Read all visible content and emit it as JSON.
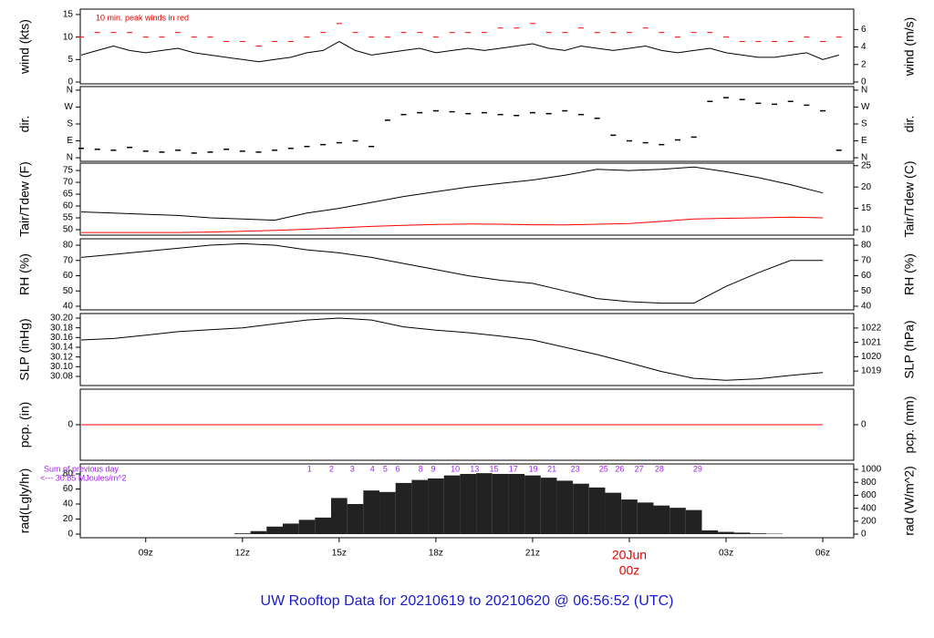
{
  "title": "UW Rooftop Data for 20210619  to  20210620 @ 06:56:52  (UTC)",
  "chart_data": [
    {
      "type": "line",
      "ylabel": "wind (kts)",
      "y2label": "wind (m/s)",
      "annotation": "10 min. peak winds in red",
      "xlim": [
        6.97,
        30.96
      ],
      "x": [
        7,
        7.5,
        8,
        8.5,
        9,
        9.5,
        10,
        10.5,
        11,
        11.5,
        12,
        12.5,
        13,
        13.5,
        14,
        14.5,
        15,
        15.5,
        16,
        16.5,
        17,
        17.5,
        18,
        18.5,
        19,
        19.5,
        20,
        20.5,
        21,
        21.5,
        22,
        22.5,
        23,
        23.5,
        24,
        24.5,
        25,
        25.5,
        26,
        26.5,
        27,
        27.5,
        28,
        28.5,
        29,
        29.5,
        30,
        30.5
      ],
      "series": [
        {
          "color": "#000000",
          "mode": "line",
          "values": [
            6,
            7,
            8,
            7,
            6.5,
            7,
            7.5,
            6.5,
            6,
            5.5,
            5,
            4.5,
            5,
            5.5,
            6.5,
            7,
            9,
            7,
            6,
            6.5,
            7,
            7.5,
            6.5,
            7,
            7.5,
            7,
            7.5,
            8,
            8.5,
            7.5,
            7,
            8,
            7.5,
            7,
            7.5,
            8,
            7,
            6.5,
            7,
            7.5,
            6.5,
            6,
            5.5,
            5.5,
            6,
            6.5,
            5,
            6
          ]
        },
        {
          "color": "#ff0000",
          "mode": "markers",
          "values": [
            10,
            11,
            11,
            11,
            10,
            10,
            11,
            10,
            10,
            9,
            9,
            8,
            9,
            9,
            10,
            11,
            13,
            11,
            10,
            10,
            11,
            11,
            10,
            11,
            11,
            11,
            12,
            12,
            13,
            11,
            11,
            12,
            11,
            11,
            11,
            12,
            11,
            10,
            11,
            11,
            10,
            9,
            9,
            9,
            9,
            10,
            9,
            10
          ]
        }
      ],
      "ylim": [
        -0.4,
        16.2
      ],
      "yticks": [
        0,
        5,
        10,
        15
      ],
      "y2lim": [
        -0.21,
        8.33
      ],
      "y2ticks": [
        0,
        2,
        4,
        6
      ]
    },
    {
      "type": "scatter",
      "ylabel": "dir.",
      "y2label": "dir.",
      "xlim": [
        6.97,
        30.96
      ],
      "x": [
        7,
        7.5,
        8,
        8.5,
        9,
        9.5,
        10,
        10.5,
        11,
        11.5,
        12,
        12.5,
        13,
        13.5,
        14,
        14.5,
        15,
        15.5,
        16,
        16.5,
        17,
        17.5,
        18,
        18.5,
        19,
        19.5,
        20,
        20.5,
        21,
        21.5,
        22,
        22.5,
        23,
        23.5,
        24,
        24.5,
        25,
        25.5,
        26,
        26.5,
        27,
        27.5,
        28,
        28.5,
        29,
        29.5,
        30,
        30.5
      ],
      "series": [
        {
          "color": "#000000",
          "values": [
            50,
            45,
            40,
            55,
            35,
            30,
            40,
            25,
            30,
            45,
            35,
            30,
            40,
            50,
            60,
            70,
            80,
            90,
            60,
            200,
            230,
            240,
            250,
            245,
            235,
            240,
            230,
            225,
            240,
            235,
            250,
            230,
            210,
            120,
            90,
            80,
            70,
            95,
            110,
            300,
            320,
            310,
            290,
            285,
            300,
            280,
            250,
            40
          ]
        }
      ],
      "ylim": [
        -19,
        379
      ],
      "yticks": [
        {
          "value": 0,
          "label": "N"
        },
        {
          "value": 90,
          "label": "E"
        },
        {
          "value": 180,
          "label": "S"
        },
        {
          "value": 270,
          "label": "W"
        },
        {
          "value": 360,
          "label": "N"
        }
      ],
      "y2lim": [
        -19,
        379
      ],
      "y2ticks": [
        {
          "value": 0,
          "label": "N"
        },
        {
          "value": 90,
          "label": "E"
        },
        {
          "value": 180,
          "label": "S"
        },
        {
          "value": 270,
          "label": "W"
        },
        {
          "value": 360,
          "label": "N"
        }
      ]
    },
    {
      "type": "line",
      "ylabel": "Tair/Tdew (F)",
      "y2label": "Tair/Tdew (C)",
      "xlim": [
        6.97,
        30.96
      ],
      "x": [
        7,
        8,
        9,
        10,
        11,
        12,
        13,
        14,
        15,
        16,
        17,
        18,
        19,
        20,
        21,
        22,
        23,
        24,
        25,
        26,
        27,
        28,
        29,
        30
      ],
      "series": [
        {
          "color": "#000000",
          "mode": "line",
          "values": [
            57.5,
            57,
            56.5,
            56,
            55,
            54.5,
            54,
            57,
            59,
            61.5,
            64,
            66,
            68,
            69.5,
            71,
            73,
            75.5,
            75,
            75.5,
            76.5,
            74.5,
            72,
            69,
            65.5
          ]
        },
        {
          "color": "#ff0000",
          "mode": "line",
          "values": [
            48.8,
            48.8,
            48.8,
            48.8,
            49,
            49.3,
            49.7,
            50.2,
            50.8,
            51.4,
            51.8,
            52.2,
            52.4,
            52.3,
            52.1,
            52,
            52.3,
            52.6,
            53.5,
            54.5,
            54.8,
            55,
            55.3,
            55
          ]
        }
      ],
      "ylim": [
        47.7,
        78.1
      ],
      "yticks": [
        50,
        55,
        60,
        65,
        70,
        75
      ],
      "y2lim": [
        8.72,
        25.6
      ],
      "y2ticks": [
        10,
        15,
        20,
        25
      ]
    },
    {
      "type": "line",
      "ylabel": "RH (%)",
      "y2label": "RH (%)",
      "xlim": [
        6.97,
        30.96
      ],
      "x": [
        7,
        8,
        9,
        10,
        11,
        12,
        13,
        14,
        15,
        16,
        17,
        18,
        19,
        20,
        21,
        22,
        23,
        24,
        25,
        26,
        27,
        28,
        29,
        30
      ],
      "series": [
        {
          "color": "#000000",
          "mode": "line",
          "values": [
            72,
            74,
            76,
            78,
            80,
            81,
            80,
            77,
            75,
            72,
            68,
            64,
            60,
            57,
            55,
            50,
            45,
            43,
            42,
            42,
            53,
            62,
            70,
            70
          ]
        }
      ],
      "ylim": [
        37.6,
        84.2
      ],
      "yticks": [
        40,
        50,
        60,
        70,
        80
      ],
      "y2lim": [
        37.6,
        84.2
      ],
      "y2ticks": [
        40,
        50,
        60,
        70,
        80
      ]
    },
    {
      "type": "line",
      "ylabel": "SLP (inHg)",
      "y2label": "SLP (hPa)",
      "xlim": [
        6.97,
        30.96
      ],
      "x": [
        7,
        8,
        9,
        10,
        11,
        12,
        13,
        14,
        15,
        16,
        17,
        18,
        19,
        20,
        21,
        22,
        23,
        24,
        25,
        26,
        27,
        28,
        29,
        30
      ],
      "series": [
        {
          "color": "#000000",
          "mode": "line",
          "values": [
            30.155,
            30.158,
            30.165,
            30.172,
            30.176,
            30.18,
            30.188,
            30.196,
            30.2,
            30.196,
            30.182,
            30.175,
            30.17,
            30.163,
            30.155,
            30.14,
            30.125,
            30.108,
            30.09,
            30.076,
            30.072,
            30.075,
            30.082,
            30.088
          ]
        }
      ],
      "ylim": [
        30.0612,
        30.2094
      ],
      "yticks": [
        30.08,
        {
          "value": 30.1,
          "label": "30.10"
        },
        30.12,
        30.14,
        30.16,
        30.18,
        {
          "value": 30.2,
          "label": "30.20"
        }
      ],
      "y2lim": [
        1017.99,
        1023.01
      ],
      "y2ticks": [
        1019,
        1020,
        1021,
        1022
      ]
    },
    {
      "type": "line",
      "ylabel": "pcp. (in)",
      "y2label": "pcp. (mm)",
      "xlim": [
        6.97,
        30.96
      ],
      "x": [
        7,
        8,
        9,
        10,
        11,
        12,
        13,
        14,
        15,
        16,
        17,
        18,
        19,
        20,
        21,
        22,
        23,
        24,
        25,
        26,
        27,
        28,
        29,
        30
      ],
      "series": [
        {
          "color": "#ff0000",
          "mode": "line",
          "values": [
            0,
            0,
            0,
            0,
            0,
            0,
            0,
            0,
            0,
            0,
            0,
            0,
            0,
            0,
            0,
            0,
            0,
            0,
            0,
            0,
            0,
            0,
            0,
            0
          ]
        }
      ],
      "ylim": [
        -1,
        1
      ],
      "yticks": [
        0
      ],
      "y2lim": [
        -25.4,
        25.4
      ],
      "y2ticks": [
        0
      ]
    },
    {
      "type": "bar",
      "ylabel": "rad(Lgly/hr)",
      "y2label": "rad (W/m^2)",
      "annotations": [
        "Sum of previous day",
        "<--- 30.85 MJoules/m^2"
      ],
      "marker_color": "#a020f0",
      "hour_markers": [
        {
          "label": "1",
          "x": 14.08
        },
        {
          "label": "2",
          "x": 14.76
        },
        {
          "label": "3",
          "x": 15.41
        },
        {
          "label": "4",
          "x": 16.03
        },
        {
          "label": "5",
          "x": 16.43
        },
        {
          "label": "6",
          "x": 16.82
        },
        {
          "label": "8",
          "x": 17.53
        },
        {
          "label": "9",
          "x": 17.92
        },
        {
          "label": "10",
          "x": 18.6
        },
        {
          "label": "13",
          "x": 19.2
        },
        {
          "label": "15",
          "x": 19.8
        },
        {
          "label": "17",
          "x": 20.4
        },
        {
          "label": "19",
          "x": 21.02
        },
        {
          "label": "21",
          "x": 21.6
        },
        {
          "label": "23",
          "x": 22.32
        },
        {
          "label": "25",
          "x": 23.2
        },
        {
          "label": "26",
          "x": 23.7
        },
        {
          "label": "27",
          "x": 24.3
        },
        {
          "label": "28",
          "x": 24.93
        },
        {
          "label": "29",
          "x": 26.12
        }
      ],
      "xlim": [
        6.97,
        30.96
      ],
      "x": [
        7,
        7.5,
        8,
        8.5,
        9,
        9.5,
        10,
        10.5,
        11,
        11.5,
        12,
        12.5,
        13,
        13.5,
        14,
        14.5,
        15,
        15.5,
        16,
        16.5,
        17,
        17.5,
        18,
        18.5,
        19,
        19.5,
        20,
        20.5,
        21,
        21.5,
        22,
        22.5,
        23,
        23.5,
        24,
        24.5,
        25,
        25.5,
        26,
        26.5,
        27,
        27.5,
        28,
        28.5,
        29,
        29.5,
        30,
        30.5
      ],
      "series": [
        {
          "color": "#222222",
          "values": [
            0,
            0,
            0,
            0,
            0,
            0,
            0,
            0,
            0,
            0,
            1,
            4,
            10,
            14,
            19,
            22,
            48,
            40,
            58,
            56,
            68,
            72,
            74,
            78,
            80,
            81,
            80,
            80,
            78,
            75,
            71,
            67,
            62,
            55,
            46,
            42,
            38,
            35,
            32,
            5,
            3,
            2,
            1,
            0.5,
            0,
            0,
            0,
            0
          ]
        }
      ],
      "ylim": [
        -4.8,
        93.3
      ],
      "yticks": [
        0,
        20,
        40,
        60,
        80
      ],
      "y2lim": [
        -55.8,
        1085
      ],
      "y2ticks": [
        0,
        200,
        400,
        600,
        800,
        1000
      ],
      "xticks": [
        {
          "value": 9,
          "label": "09z"
        },
        {
          "value": 12,
          "label": "12z"
        },
        {
          "value": 15,
          "label": "15z"
        },
        {
          "value": 18,
          "label": "18z"
        },
        {
          "value": 21,
          "label": "21z"
        },
        {
          "value": 24,
          "label": "00z"
        },
        {
          "value": 27,
          "label": "03z"
        },
        {
          "value": 30,
          "label": "06z"
        }
      ],
      "date_label": {
        "text": "20Jun",
        "x": 24,
        "color": "#e00000"
      }
    }
  ]
}
